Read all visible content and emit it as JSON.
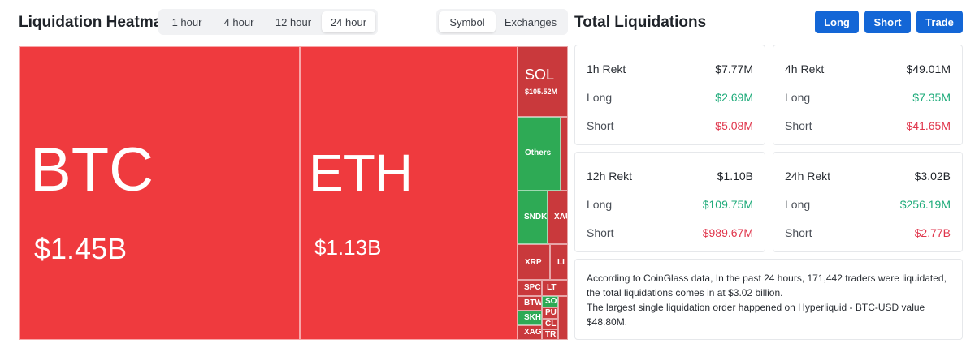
{
  "heatmap": {
    "title": "Liquidation Heatmap",
    "time_tabs": [
      {
        "label": "1 hour"
      },
      {
        "label": "4 hour"
      },
      {
        "label": "12 hour"
      },
      {
        "label": "24 hour"
      }
    ],
    "selected_time": "24 hour",
    "view_tabs": [
      {
        "label": "Symbol"
      },
      {
        "label": "Exchanges"
      }
    ],
    "selected_view": "Symbol",
    "tiles": {
      "btc": {
        "symbol": "BTC",
        "value": "$1.45B"
      },
      "eth": {
        "symbol": "ETH",
        "value": "$1.13B"
      },
      "sol": {
        "symbol": "SOL",
        "value": "$105.52M"
      },
      "others": {
        "symbol": "Others"
      },
      "sndk": {
        "symbol": "SNDK"
      },
      "xau": {
        "symbol": "XAU"
      },
      "xrp": {
        "symbol": "XRP"
      },
      "li": {
        "symbol": "LI"
      },
      "spc": {
        "symbol": "SPC"
      },
      "lt": {
        "symbol": "LT"
      },
      "btw": {
        "symbol": "BTW"
      },
      "so": {
        "symbol": "SO"
      },
      "skh": {
        "symbol": "SKH"
      },
      "pu": {
        "symbol": "PU"
      },
      "cl": {
        "symbol": "CL"
      },
      "xag": {
        "symbol": "XAG"
      },
      "tr": {
        "symbol": "TR"
      }
    },
    "colors": {
      "long_liq": "#2eaa55",
      "short_liq": "#ef3a3e"
    }
  },
  "total": {
    "title": "Total Liquidations",
    "buttons": {
      "long": "Long",
      "short": "Short",
      "trade": "Trade"
    },
    "cards": [
      {
        "head": "1h Rekt",
        "total": "$7.77M",
        "long_label": "Long",
        "long": "$2.69M",
        "short_label": "Short",
        "short": "$5.08M"
      },
      {
        "head": "4h Rekt",
        "total": "$49.01M",
        "long_label": "Long",
        "long": "$7.35M",
        "short_label": "Short",
        "short": "$41.65M"
      },
      {
        "head": "12h Rekt",
        "total": "$1.10B",
        "long_label": "Long",
        "long": "$109.75M",
        "short_label": "Short",
        "short": "$989.67M"
      },
      {
        "head": "24h Rekt",
        "total": "$3.02B",
        "long_label": "Long",
        "long": "$256.19M",
        "short_label": "Short",
        "short": "$2.77B"
      }
    ],
    "note_line1": "According to CoinGlass data, In the past 24 hours, 171,442 traders were liquidated, the total liquidations comes in at $3.02 billion.",
    "note_line2": "The largest single liquidation order happened on Hyperliquid - BTC-USD value $48.80M."
  }
}
